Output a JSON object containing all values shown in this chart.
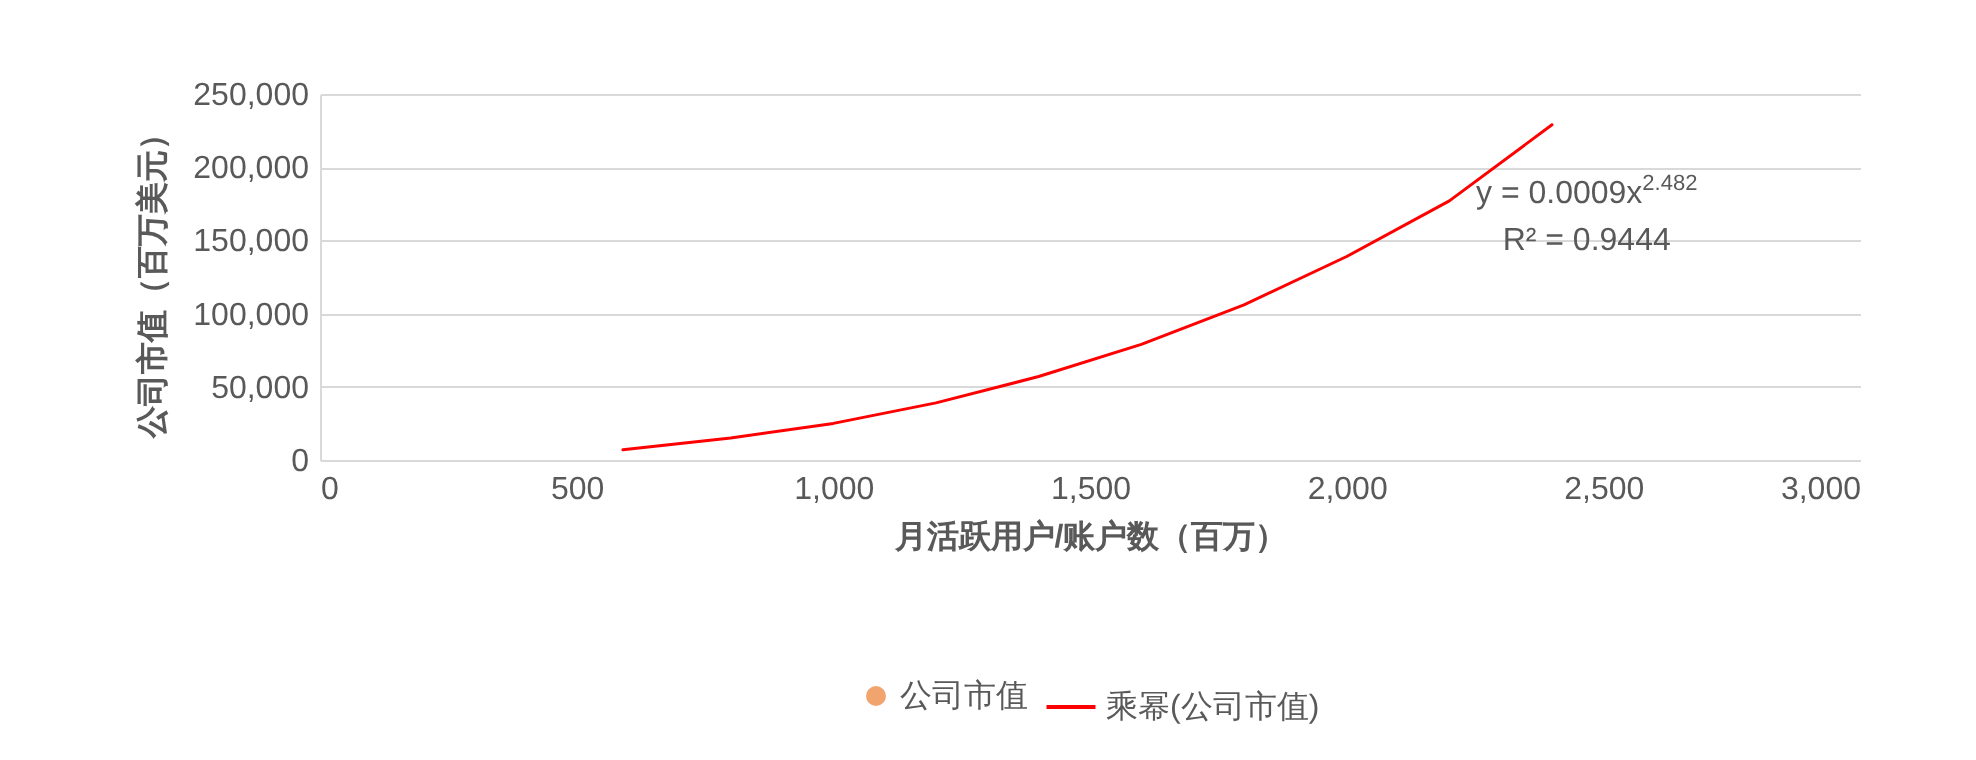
{
  "chart_data": {
    "type": "scatter",
    "xlabel": "月活跃用户/账户数（百万）",
    "ylabel": "公司市值（百万美元）",
    "xlim": [
      0,
      3000
    ],
    "xticks": [
      {
        "value": 0,
        "label": "0"
      },
      {
        "value": 500,
        "label": "500"
      },
      {
        "value": 1000,
        "label": "1,000"
      },
      {
        "value": 1500,
        "label": "1,500"
      },
      {
        "value": 2000,
        "label": "2,000"
      },
      {
        "value": 2500,
        "label": "2,500"
      },
      {
        "value": 3000,
        "label": "3,000"
      }
    ],
    "ylim": [
      0,
      250000
    ],
    "yticks": [
      {
        "value": 0,
        "label": "0"
      },
      {
        "value": 50000,
        "label": "50,000"
      },
      {
        "value": 100000,
        "label": "100,000"
      },
      {
        "value": 150000,
        "label": "150,000"
      },
      {
        "value": 200000,
        "label": "200,000"
      },
      {
        "value": 250000,
        "label": "250,000"
      }
    ],
    "grid": "y",
    "legend": "bottom",
    "annotations": [
      "y = 0.0009x$^{2.482}$",
      "R² = 0.9444"
    ],
    "series": [
      {
        "name": "公司市值",
        "color": "#ed7d31"
      },
      {
        "name": "乘幂(公司市值)",
        "type": "line",
        "color": "#ff0000",
        "line_style": "solid",
        "x": [
          590,
          800,
          1000,
          1200,
          1400,
          1600,
          1800,
          2000,
          2200,
          2400
        ],
        "values": [
          7000,
          15000,
          25000,
          39000,
          57000,
          79000,
          106000,
          139000,
          177000,
          229000
        ]
      }
    ]
  }
}
